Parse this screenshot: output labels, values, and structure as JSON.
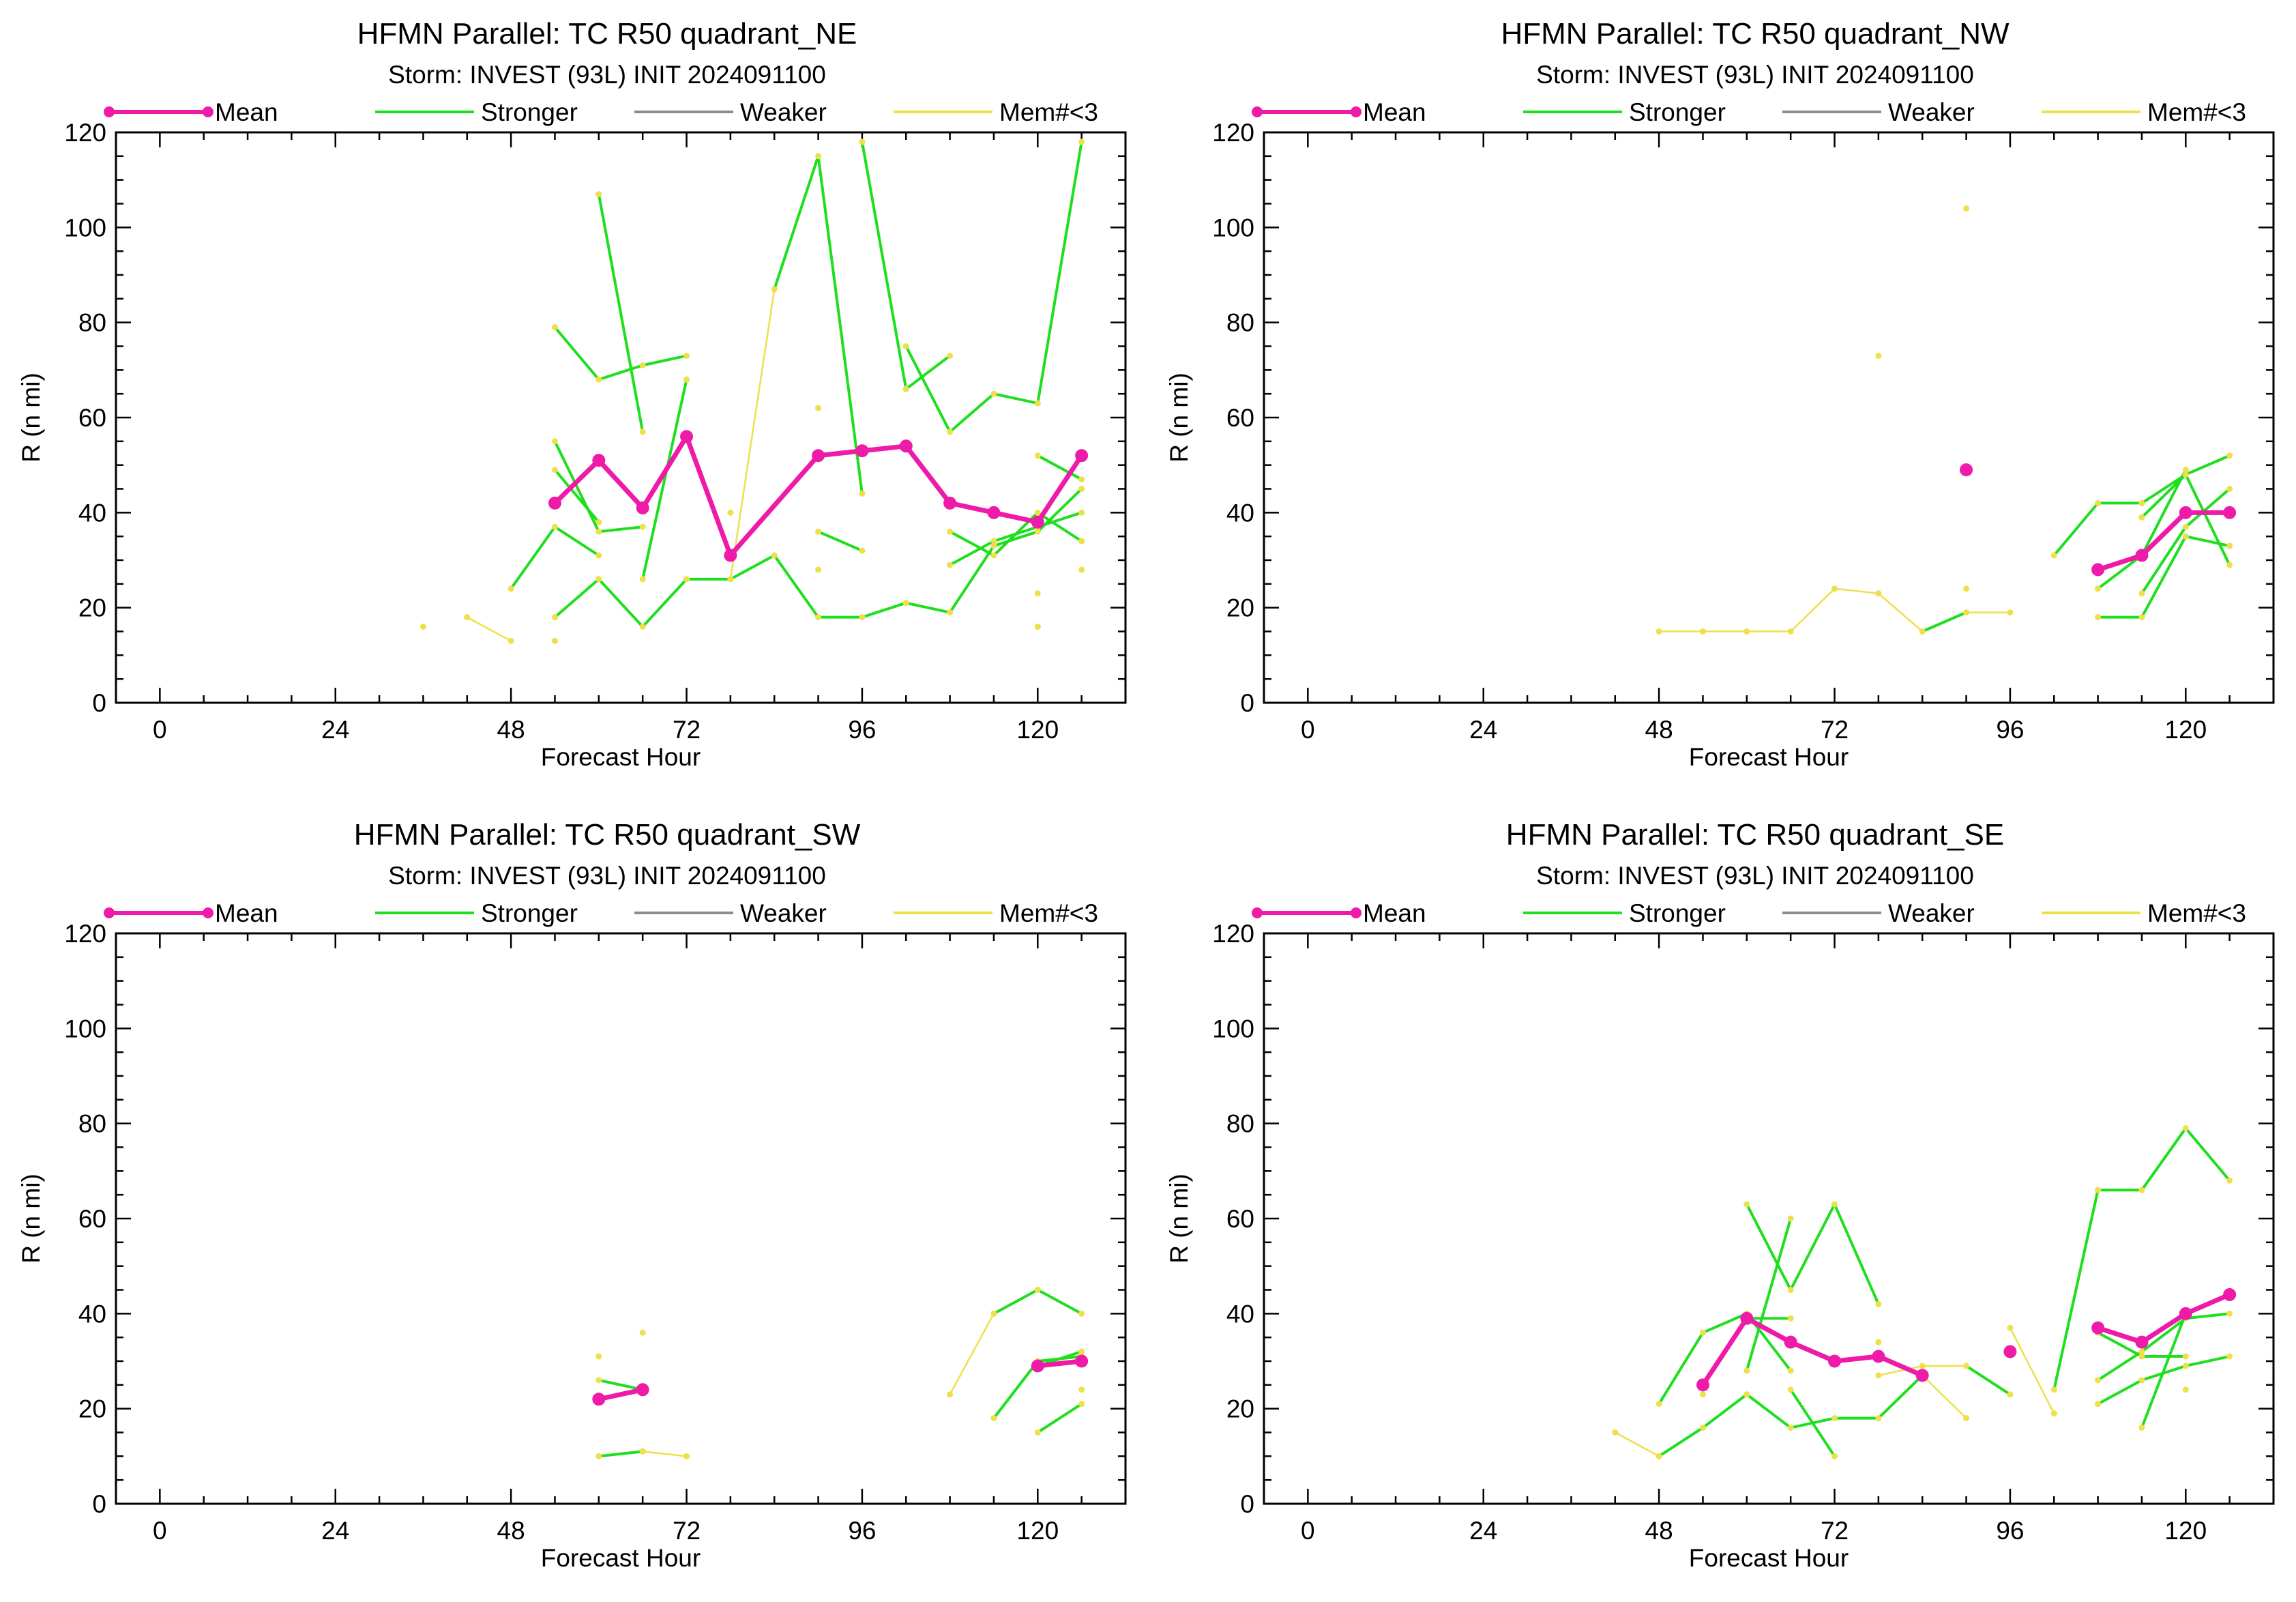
{
  "colors": {
    "mean": "#ee1aa8",
    "stronger": "#1edf1e",
    "weaker": "#8c8c8c",
    "mem": "#ede04a",
    "axis": "#000000"
  },
  "chart_data": [
    {
      "type": "line",
      "title": "HFMN Parallel: TC  R50 quadrant_NE",
      "subtitle": "Storm: INVEST (93L) INIT 2024091100",
      "xlabel": "Forecast Hour",
      "ylabel": "R (n mi)",
      "xlim": [
        -6,
        132
      ],
      "ylim": [
        0,
        120
      ],
      "xticks": [
        0,
        24,
        48,
        72,
        96,
        120
      ],
      "yticks": [
        0,
        20,
        40,
        60,
        80,
        100,
        120
      ],
      "legend": [
        {
          "name": "Mean",
          "role": "mean"
        },
        {
          "name": "Stronger",
          "role": "stronger"
        },
        {
          "name": "Weaker",
          "role": "weaker"
        },
        {
          "name": "Mem#<3",
          "role": "mem"
        }
      ],
      "mean": {
        "x": [
          54,
          60,
          66,
          72,
          78,
          90,
          96,
          102,
          108,
          114,
          120,
          126
        ],
        "y": [
          42,
          51,
          41,
          56,
          31,
          52,
          53,
          54,
          42,
          40,
          38,
          52
        ]
      },
      "stronger": [
        {
          "x": [
            48,
            54,
            60,
            66,
            72,
            78
          ],
          "y": [
            24,
            37,
            31,
            null,
            null,
            null
          ]
        },
        {
          "x": [
            54,
            60,
            66,
            72
          ],
          "y": [
            79,
            68,
            71,
            73
          ]
        },
        {
          "x": [
            54,
            60,
            66,
            72,
            78
          ],
          "y": [
            55,
            36,
            37,
            null,
            null
          ]
        },
        {
          "x": [
            54,
            60,
            66,
            72,
            78,
            84,
            90,
            96,
            102,
            108,
            114,
            120,
            126
          ],
          "y": [
            18,
            26,
            16,
            26,
            26,
            31,
            18,
            18,
            21,
            19,
            33,
            36,
            45
          ]
        },
        {
          "x": [
            54,
            60
          ],
          "y": [
            49,
            38
          ]
        },
        {
          "x": [
            60,
            66
          ],
          "y": [
            107,
            57
          ]
        },
        {
          "x": [
            66,
            72
          ],
          "y": [
            26,
            68
          ]
        },
        {
          "x": [
            84,
            90,
            96
          ],
          "y": [
            87,
            115,
            44
          ]
        },
        {
          "x": [
            96,
            102
          ],
          "y": [
            118,
            66
          ]
        },
        {
          "x": [
            102,
            108,
            114,
            120,
            126
          ],
          "y": [
            75,
            57,
            65,
            63,
            118
          ]
        },
        {
          "x": [
            102,
            108
          ],
          "y": [
            66,
            73
          ]
        },
        {
          "x": [
            90,
            96
          ],
          "y": [
            36,
            32
          ]
        },
        {
          "x": [
            108,
            114,
            120,
            126
          ],
          "y": [
            29,
            34,
            37,
            40
          ]
        },
        {
          "x": [
            108,
            114,
            120,
            126
          ],
          "y": [
            36,
            31,
            40,
            34
          ]
        },
        {
          "x": [
            120,
            126
          ],
          "y": [
            52,
            47
          ]
        }
      ],
      "mem": [
        {
          "x": [
            42,
            48
          ],
          "y": [
            18,
            13
          ]
        },
        {
          "x": [
            78,
            84
          ],
          "y": [
            26,
            87
          ]
        },
        {
          "x": [
            36
          ],
          "y": [
            16
          ]
        },
        {
          "x": [
            54
          ],
          "y": [
            13
          ]
        },
        {
          "x": [
            78
          ],
          "y": [
            40
          ]
        },
        {
          "x": [
            90
          ],
          "y": [
            62
          ]
        },
        {
          "x": [
            90
          ],
          "y": [
            28
          ]
        },
        {
          "x": [
            120
          ],
          "y": [
            23
          ]
        },
        {
          "x": [
            120
          ],
          "y": [
            16
          ]
        },
        {
          "x": [
            126
          ],
          "y": [
            28
          ]
        }
      ]
    },
    {
      "type": "line",
      "title": "HFMN Parallel: TC  R50 quadrant_NW",
      "subtitle": "Storm: INVEST (93L) INIT 2024091100",
      "xlabel": "Forecast Hour",
      "ylabel": "R (n mi)",
      "xlim": [
        -6,
        132
      ],
      "ylim": [
        0,
        120
      ],
      "xticks": [
        0,
        24,
        48,
        72,
        96,
        120
      ],
      "yticks": [
        0,
        20,
        40,
        60,
        80,
        100,
        120
      ],
      "legend": [
        {
          "name": "Mean",
          "role": "mean"
        },
        {
          "name": "Stronger",
          "role": "stronger"
        },
        {
          "name": "Weaker",
          "role": "weaker"
        },
        {
          "name": "Mem#<3",
          "role": "mem"
        }
      ],
      "mean": {
        "x": [
          90,
          108,
          114,
          120,
          126
        ],
        "y": [
          49,
          28,
          31,
          40,
          40
        ],
        "break_after": [
          0
        ]
      },
      "stronger": [
        {
          "x": [
            84,
            90
          ],
          "y": [
            15,
            19
          ]
        },
        {
          "x": [
            102,
            108,
            114,
            120,
            126
          ],
          "y": [
            31,
            42,
            42,
            48,
            52
          ]
        },
        {
          "x": [
            108,
            114,
            120
          ],
          "y": [
            24,
            31,
            49
          ]
        },
        {
          "x": [
            108,
            114,
            120,
            126
          ],
          "y": [
            18,
            18,
            35,
            33
          ]
        },
        {
          "x": [
            114,
            120,
            126
          ],
          "y": [
            23,
            37,
            45
          ]
        },
        {
          "x": [
            114,
            120,
            126
          ],
          "y": [
            39,
            48,
            29
          ]
        }
      ],
      "mem": [
        {
          "x": [
            48,
            54,
            60,
            66,
            72,
            78,
            84
          ],
          "y": [
            15,
            15,
            15,
            15,
            24,
            23,
            15
          ]
        },
        {
          "x": [
            90,
            96
          ],
          "y": [
            19,
            19
          ]
        },
        {
          "x": [
            78
          ],
          "y": [
            73
          ]
        },
        {
          "x": [
            90
          ],
          "y": [
            104
          ]
        },
        {
          "x": [
            90
          ],
          "y": [
            24
          ]
        }
      ]
    },
    {
      "type": "line",
      "title": "HFMN Parallel: TC  R50 quadrant_SW",
      "subtitle": "Storm: INVEST (93L) INIT 2024091100",
      "xlabel": "Forecast Hour",
      "ylabel": "R (n mi)",
      "xlim": [
        -6,
        132
      ],
      "ylim": [
        0,
        120
      ],
      "xticks": [
        0,
        24,
        48,
        72,
        96,
        120
      ],
      "yticks": [
        0,
        20,
        40,
        60,
        80,
        100,
        120
      ],
      "legend": [
        {
          "name": "Mean",
          "role": "mean"
        },
        {
          "name": "Stronger",
          "role": "stronger"
        },
        {
          "name": "Weaker",
          "role": "weaker"
        },
        {
          "name": "Mem#<3",
          "role": "mem"
        }
      ],
      "mean": {
        "x": [
          60,
          66,
          120,
          126
        ],
        "y": [
          22,
          24,
          29,
          30
        ],
        "break_after": [
          1
        ]
      },
      "stronger": [
        {
          "x": [
            60,
            66
          ],
          "y": [
            10,
            11
          ]
        },
        {
          "x": [
            60,
            66
          ],
          "y": [
            26,
            24
          ]
        },
        {
          "x": [
            114,
            120,
            126
          ],
          "y": [
            40,
            45,
            40
          ]
        },
        {
          "x": [
            114,
            120,
            126
          ],
          "y": [
            18,
            30,
            31
          ]
        },
        {
          "x": [
            120,
            126
          ],
          "y": [
            15,
            21
          ]
        },
        {
          "x": [
            120,
            126
          ],
          "y": [
            29,
            32
          ]
        }
      ],
      "mem": [
        {
          "x": [
            66,
            72
          ],
          "y": [
            11,
            10
          ]
        },
        {
          "x": [
            108,
            114
          ],
          "y": [
            23,
            40
          ]
        },
        {
          "x": [
            60
          ],
          "y": [
            31
          ]
        },
        {
          "x": [
            66
          ],
          "y": [
            36
          ]
        },
        {
          "x": [
            126
          ],
          "y": [
            24
          ]
        }
      ]
    },
    {
      "type": "line",
      "title": "HFMN Parallel: TC  R50 quadrant_SE",
      "subtitle": "Storm: INVEST (93L) INIT 2024091100",
      "xlabel": "Forecast Hour",
      "ylabel": "R (n mi)",
      "xlim": [
        -6,
        132
      ],
      "ylim": [
        0,
        120
      ],
      "xticks": [
        0,
        24,
        48,
        72,
        96,
        120
      ],
      "yticks": [
        0,
        20,
        40,
        60,
        80,
        100,
        120
      ],
      "legend": [
        {
          "name": "Mean",
          "role": "mean"
        },
        {
          "name": "Stronger",
          "role": "stronger"
        },
        {
          "name": "Weaker",
          "role": "weaker"
        },
        {
          "name": "Mem#<3",
          "role": "mem"
        }
      ],
      "mean": {
        "x": [
          54,
          60,
          66,
          72,
          78,
          84,
          96,
          108,
          114,
          120,
          126
        ],
        "y": [
          25,
          39,
          34,
          30,
          31,
          27,
          32,
          37,
          34,
          40,
          44
        ],
        "break_after": [
          5,
          6
        ]
      },
      "stronger": [
        {
          "x": [
            48,
            54,
            60,
            66
          ],
          "y": [
            21,
            36,
            40,
            28
          ]
        },
        {
          "x": [
            48,
            54,
            60,
            66,
            72,
            78,
            84
          ],
          "y": [
            10,
            16,
            23,
            16,
            18,
            18,
            27
          ]
        },
        {
          "x": [
            60,
            66,
            72,
            78
          ],
          "y": [
            63,
            45,
            63,
            42
          ]
        },
        {
          "x": [
            60,
            66
          ],
          "y": [
            28,
            60
          ]
        },
        {
          "x": [
            60,
            66
          ],
          "y": [
            39,
            39
          ]
        },
        {
          "x": [
            66,
            72
          ],
          "y": [
            24,
            10
          ]
        },
        {
          "x": [
            90,
            96
          ],
          "y": [
            29,
            23
          ]
        },
        {
          "x": [
            102,
            108,
            114,
            120,
            126
          ],
          "y": [
            24,
            66,
            66,
            79,
            68
          ]
        },
        {
          "x": [
            108,
            114,
            120,
            126
          ],
          "y": [
            26,
            32,
            39,
            40
          ]
        },
        {
          "x": [
            108,
            114,
            120,
            126
          ],
          "y": [
            21,
            26,
            29,
            31
          ]
        },
        {
          "x": [
            114,
            120
          ],
          "y": [
            16,
            40
          ]
        },
        {
          "x": [
            108,
            114,
            120
          ],
          "y": [
            36,
            31,
            31
          ]
        }
      ],
      "mem": [
        {
          "x": [
            42,
            48
          ],
          "y": [
            15,
            10
          ]
        },
        {
          "x": [
            78,
            84,
            90
          ],
          "y": [
            27,
            29,
            29
          ]
        },
        {
          "x": [
            84,
            90
          ],
          "y": [
            27,
            18
          ]
        },
        {
          "x": [
            96,
            102
          ],
          "y": [
            37,
            19
          ]
        },
        {
          "x": [
            54
          ],
          "y": [
            23
          ]
        },
        {
          "x": [
            78
          ],
          "y": [
            34
          ]
        },
        {
          "x": [
            120
          ],
          "y": [
            24
          ]
        }
      ]
    }
  ]
}
